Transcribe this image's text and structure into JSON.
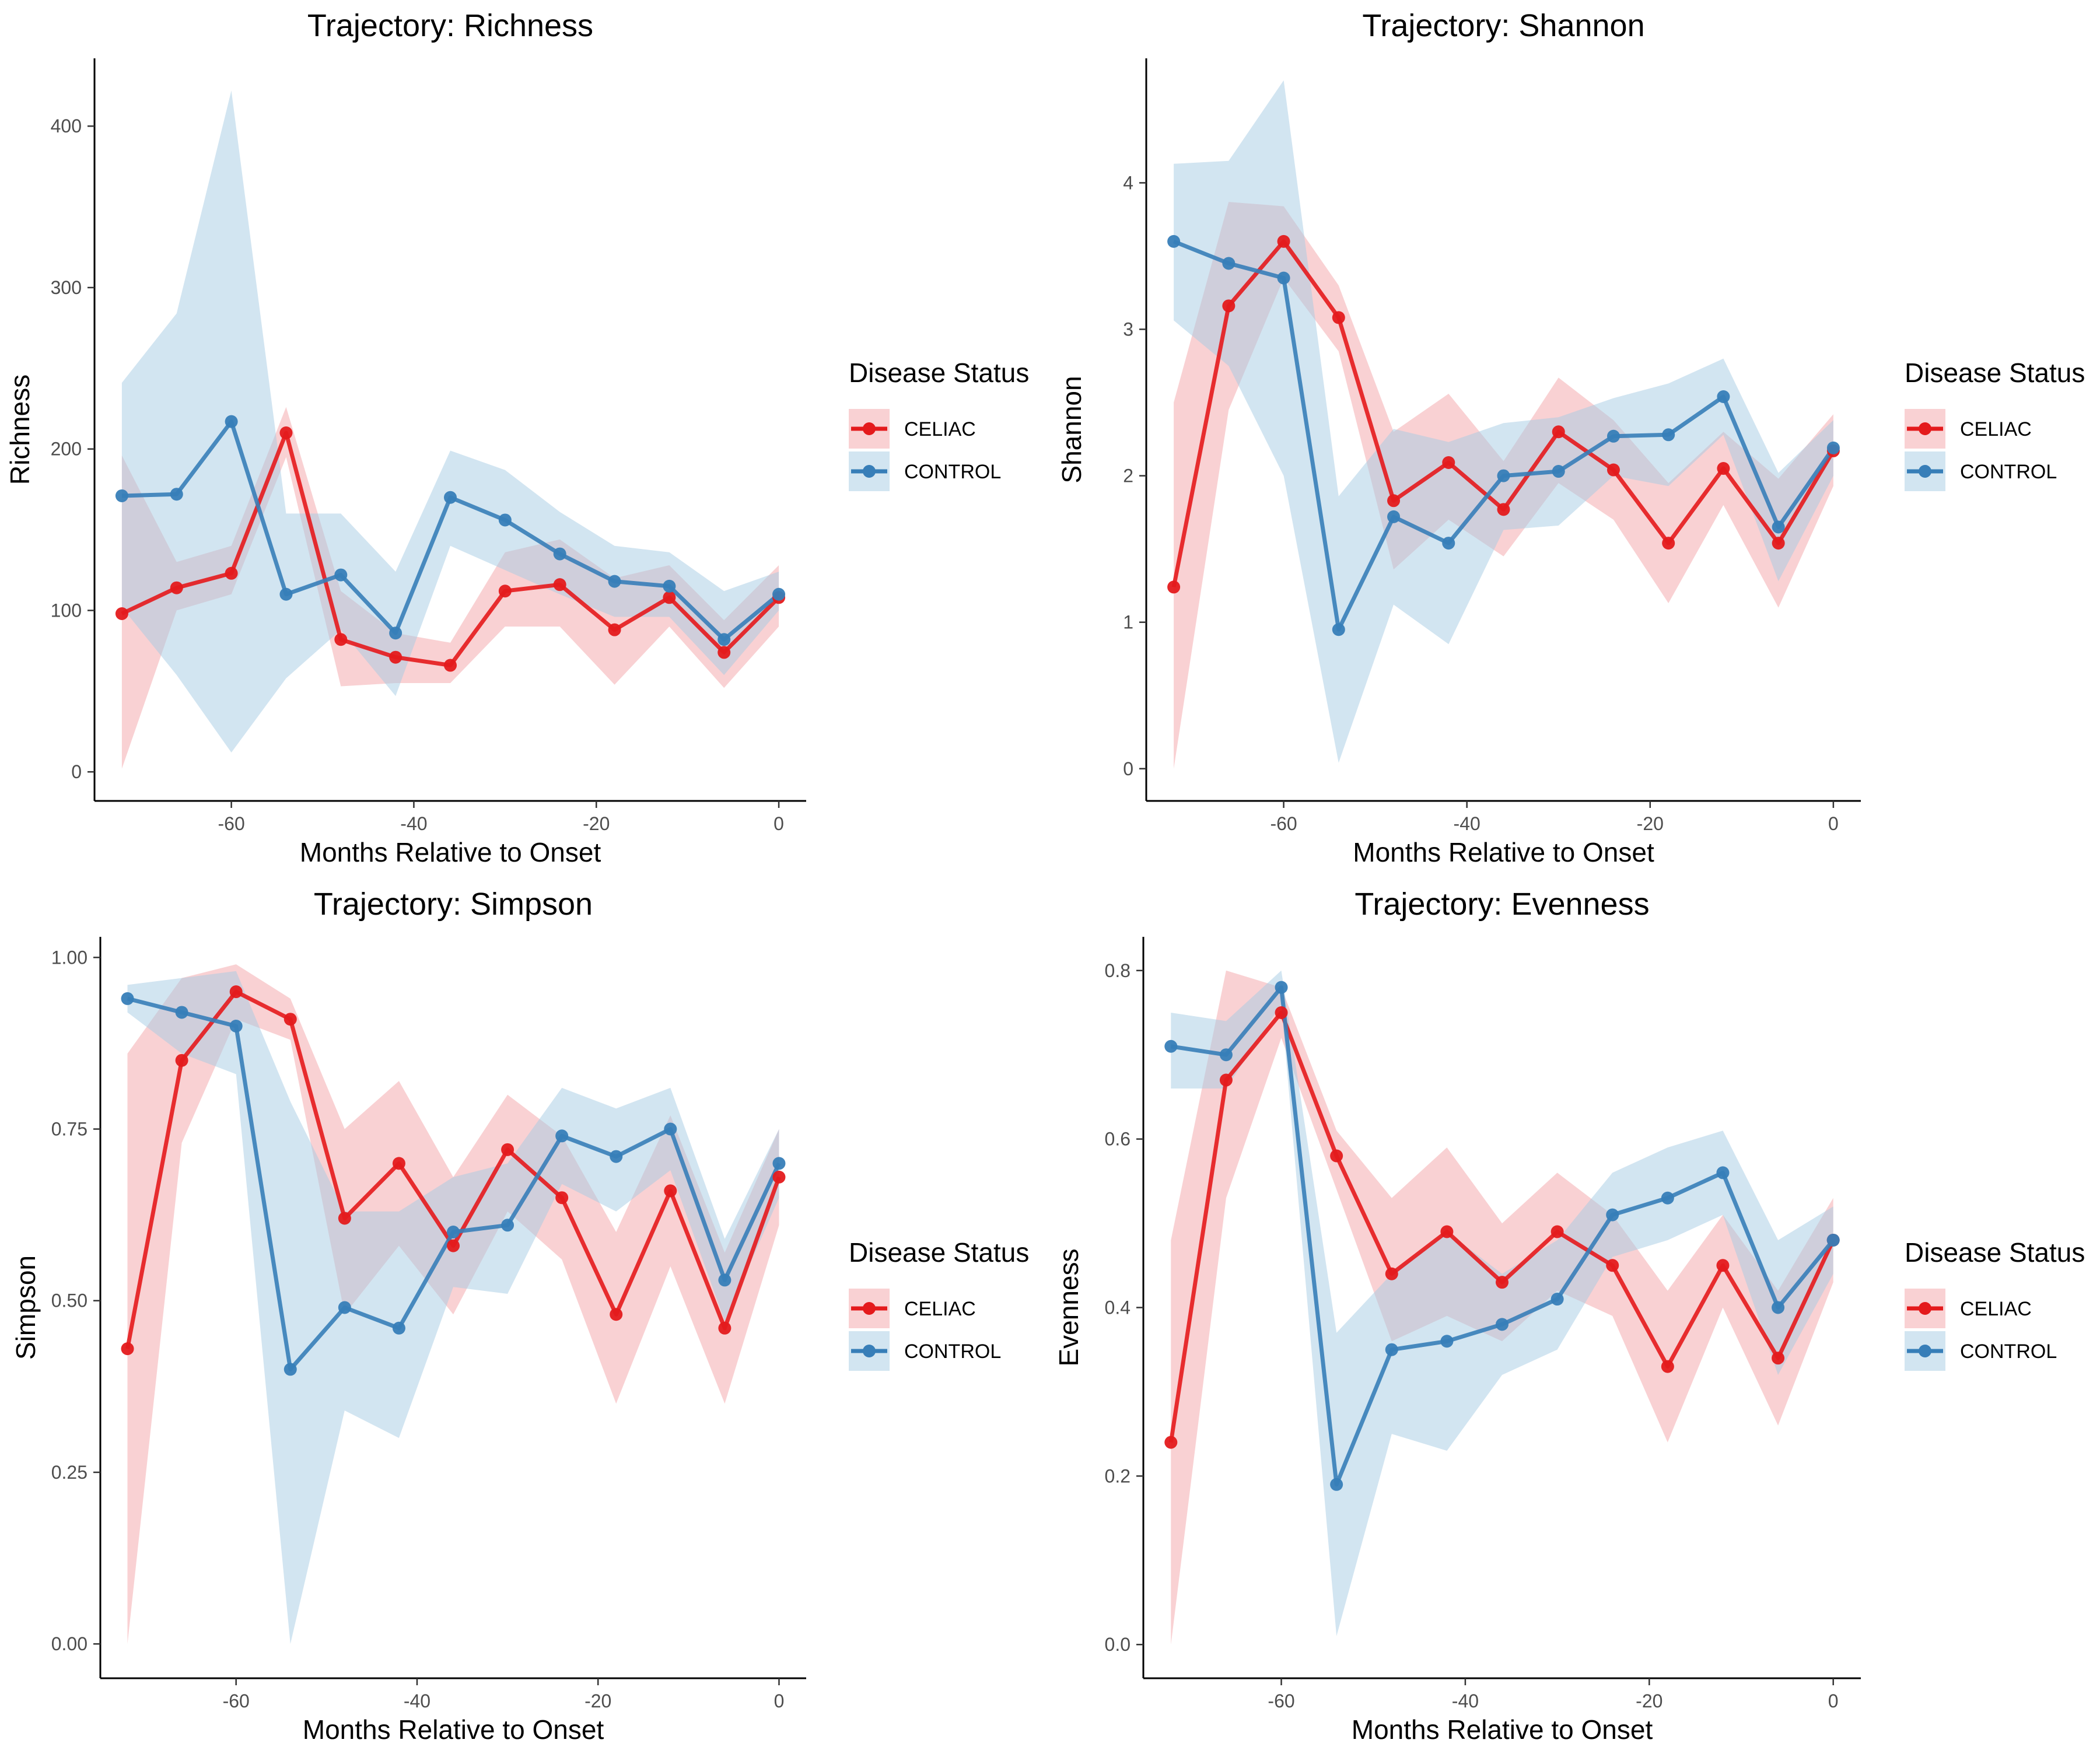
{
  "colors": {
    "CELIAC": "#e41a1c",
    "CONTROL": "#377eb8",
    "CELIAC_band": "#f4a4a8",
    "CONTROL_band": "#a6cbe3"
  },
  "legend": {
    "title": "Disease Status",
    "items": [
      "CELIAC",
      "CONTROL"
    ]
  },
  "chart_data": [
    {
      "type": "line",
      "title": "Trajectory: Richness",
      "xlabel": "Months Relative to Onset",
      "ylabel": "Richness",
      "xlim": [
        -75,
        3
      ],
      "ylim": [
        -18,
        442
      ],
      "xticks": [
        -60,
        -40,
        -20,
        0
      ],
      "yticks": [
        0,
        100,
        200,
        300,
        400
      ],
      "series": [
        {
          "name": "CELIAC",
          "x": [
            -72,
            -66,
            -60,
            -54,
            -48,
            -42,
            -36,
            -30,
            -24,
            -18,
            -12,
            -6,
            0
          ],
          "y": [
            98,
            114,
            123,
            210,
            82,
            71,
            66,
            112,
            116,
            88,
            108,
            74,
            108
          ],
          "lower": [
            2,
            100,
            110,
            195,
            53,
            55,
            55,
            90,
            90,
            54,
            90,
            52,
            90
          ],
          "upper": [
            196,
            130,
            140,
            226,
            112,
            86,
            80,
            136,
            144,
            120,
            128,
            94,
            128
          ]
        },
        {
          "name": "CONTROL",
          "x": [
            -72,
            -66,
            -60,
            -54,
            -48,
            -42,
            -36,
            -30,
            -24,
            -18,
            -12,
            -6,
            0
          ],
          "y": [
            171,
            172,
            217,
            110,
            122,
            86,
            170,
            156,
            135,
            118,
            115,
            82,
            110
          ],
          "lower": [
            102,
            60,
            12,
            58,
            88,
            47,
            140,
            125,
            110,
            96,
            96,
            60,
            100
          ],
          "upper": [
            241,
            284,
            422,
            160,
            160,
            124,
            199,
            187,
            161,
            140,
            136,
            112,
            124
          ]
        }
      ]
    },
    {
      "type": "line",
      "title": "Trajectory: Shannon",
      "xlabel": "Months Relative to Onset",
      "ylabel": "Shannon",
      "xlim": [
        -75,
        3
      ],
      "ylim": [
        -0.22,
        4.85
      ],
      "xticks": [
        -60,
        -40,
        -20,
        0
      ],
      "yticks": [
        0,
        1,
        2,
        3,
        4
      ],
      "series": [
        {
          "name": "CELIAC",
          "x": [
            -72,
            -66,
            -60,
            -54,
            -48,
            -42,
            -36,
            -30,
            -24,
            -18,
            -12,
            -6,
            0
          ],
          "y": [
            1.24,
            3.16,
            3.6,
            3.08,
            1.83,
            2.09,
            1.77,
            2.3,
            2.04,
            1.54,
            2.05,
            1.54,
            2.17
          ],
          "lower": [
            0.0,
            2.45,
            3.35,
            2.85,
            1.36,
            1.7,
            1.45,
            1.95,
            1.7,
            1.13,
            1.8,
            1.1,
            1.93
          ],
          "upper": [
            2.5,
            3.87,
            3.84,
            3.3,
            2.3,
            2.56,
            2.1,
            2.67,
            2.38,
            1.95,
            2.3,
            1.98,
            2.42
          ]
        },
        {
          "name": "CONTROL",
          "x": [
            -72,
            -66,
            -60,
            -54,
            -48,
            -42,
            -36,
            -30,
            -24,
            -18,
            -12,
            -6,
            0
          ],
          "y": [
            3.6,
            3.45,
            3.35,
            0.95,
            1.72,
            1.54,
            2.0,
            2.03,
            2.27,
            2.28,
            2.54,
            1.65,
            2.19
          ],
          "lower": [
            3.06,
            2.75,
            2.0,
            0.04,
            1.12,
            0.85,
            1.63,
            1.66,
            2.0,
            1.93,
            2.28,
            1.28,
            2.0
          ],
          "upper": [
            4.13,
            4.15,
            4.7,
            1.86,
            2.32,
            2.23,
            2.36,
            2.4,
            2.53,
            2.63,
            2.8,
            2.02,
            2.38
          ]
        }
      ]
    },
    {
      "type": "line",
      "title": "Trajectory: Simpson",
      "xlabel": "Months Relative to Onset",
      "ylabel": "Simpson",
      "xlim": [
        -75,
        3
      ],
      "ylim": [
        -0.05,
        1.03
      ],
      "xticks": [
        -60,
        -40,
        -20,
        0
      ],
      "yticks": [
        0.0,
        0.25,
        0.5,
        0.75,
        1.0
      ],
      "ytick_labels": [
        "0.00",
        "0.25",
        "0.50",
        "0.75",
        "1.00"
      ],
      "series": [
        {
          "name": "CELIAC",
          "x": [
            -72,
            -66,
            -60,
            -54,
            -48,
            -42,
            -36,
            -30,
            -24,
            -18,
            -12,
            -6,
            0
          ],
          "y": [
            0.43,
            0.85,
            0.95,
            0.91,
            0.62,
            0.7,
            0.58,
            0.72,
            0.65,
            0.48,
            0.66,
            0.46,
            0.68
          ],
          "lower": [
            0.0,
            0.73,
            0.91,
            0.88,
            0.48,
            0.58,
            0.48,
            0.63,
            0.56,
            0.35,
            0.55,
            0.35,
            0.61
          ],
          "upper": [
            0.86,
            0.97,
            0.99,
            0.94,
            0.75,
            0.82,
            0.68,
            0.8,
            0.74,
            0.6,
            0.77,
            0.57,
            0.75
          ]
        },
        {
          "name": "CONTROL",
          "x": [
            -72,
            -66,
            -60,
            -54,
            -48,
            -42,
            -36,
            -30,
            -24,
            -18,
            -12,
            -6,
            0
          ],
          "y": [
            0.94,
            0.92,
            0.9,
            0.4,
            0.49,
            0.46,
            0.6,
            0.61,
            0.74,
            0.71,
            0.75,
            0.53,
            0.7
          ],
          "lower": [
            0.92,
            0.86,
            0.83,
            0.0,
            0.34,
            0.3,
            0.52,
            0.51,
            0.67,
            0.63,
            0.69,
            0.47,
            0.65
          ],
          "upper": [
            0.96,
            0.97,
            0.98,
            0.79,
            0.63,
            0.63,
            0.68,
            0.7,
            0.81,
            0.78,
            0.81,
            0.59,
            0.75
          ]
        }
      ]
    },
    {
      "type": "line",
      "title": "Trajectory: Evenness",
      "xlabel": "Months Relative to Onset",
      "ylabel": "Evenness",
      "xlim": [
        -75,
        3
      ],
      "ylim": [
        -0.04,
        0.84
      ],
      "xticks": [
        -60,
        -40,
        -20,
        0
      ],
      "yticks": [
        0.0,
        0.2,
        0.4,
        0.6,
        0.8
      ],
      "ytick_labels": [
        "0.0",
        "0.2",
        "0.4",
        "0.6",
        "0.8"
      ],
      "series": [
        {
          "name": "CELIAC",
          "x": [
            -72,
            -66,
            -60,
            -54,
            -48,
            -42,
            -36,
            -30,
            -24,
            -18,
            -12,
            -6,
            0
          ],
          "y": [
            0.24,
            0.67,
            0.75,
            0.58,
            0.44,
            0.49,
            0.43,
            0.49,
            0.45,
            0.33,
            0.45,
            0.34,
            0.48
          ],
          "lower": [
            0.0,
            0.53,
            0.72,
            0.54,
            0.36,
            0.39,
            0.36,
            0.42,
            0.39,
            0.24,
            0.4,
            0.26,
            0.43
          ],
          "upper": [
            0.48,
            0.8,
            0.78,
            0.61,
            0.53,
            0.59,
            0.5,
            0.56,
            0.51,
            0.42,
            0.51,
            0.42,
            0.53
          ]
        },
        {
          "name": "CONTROL",
          "x": [
            -72,
            -66,
            -60,
            -54,
            -48,
            -42,
            -36,
            -30,
            -24,
            -18,
            -12,
            -6,
            0
          ],
          "y": [
            0.71,
            0.7,
            0.78,
            0.19,
            0.35,
            0.36,
            0.38,
            0.41,
            0.51,
            0.53,
            0.56,
            0.4,
            0.48
          ],
          "lower": [
            0.66,
            0.66,
            0.76,
            0.01,
            0.25,
            0.23,
            0.32,
            0.35,
            0.46,
            0.48,
            0.51,
            0.32,
            0.44
          ],
          "upper": [
            0.75,
            0.74,
            0.8,
            0.37,
            0.44,
            0.49,
            0.44,
            0.48,
            0.56,
            0.59,
            0.61,
            0.48,
            0.52
          ]
        }
      ]
    }
  ]
}
